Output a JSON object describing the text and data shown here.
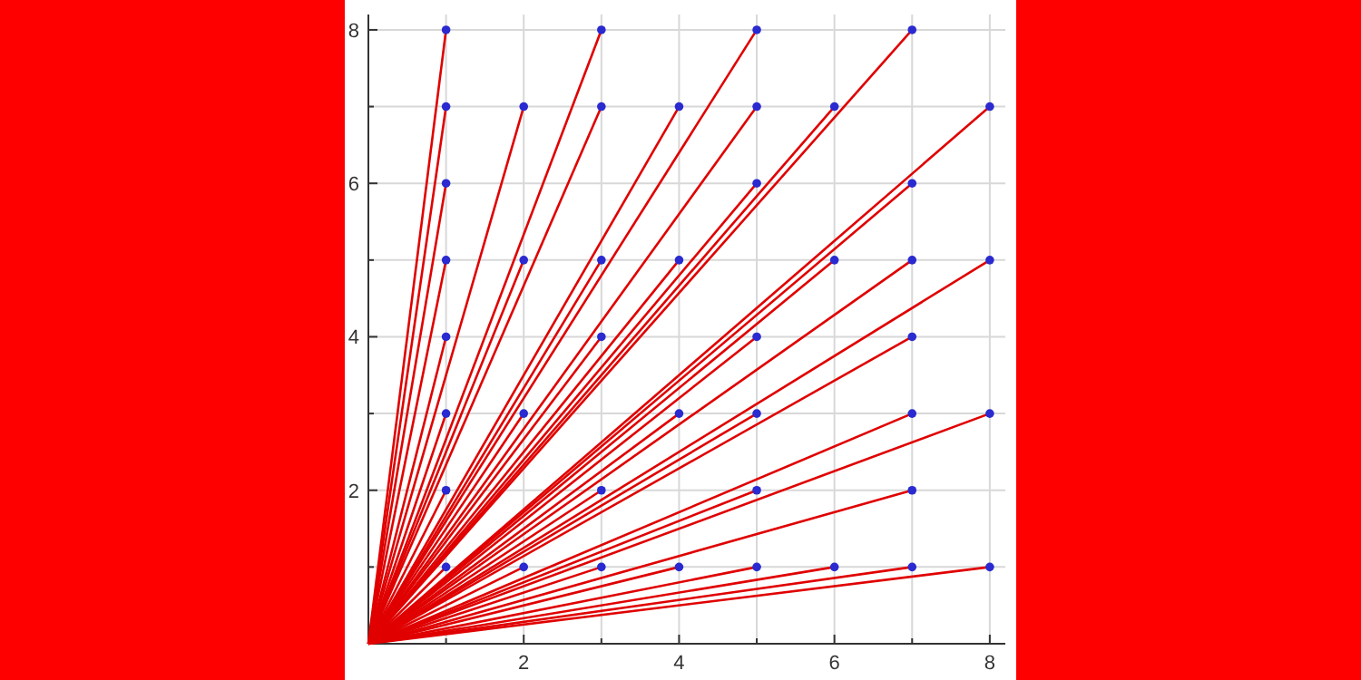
{
  "chart_data": {
    "type": "line",
    "xlim": [
      0,
      8.2
    ],
    "ylim": [
      0,
      8.2
    ],
    "xticks": [
      {
        "value": 1,
        "label": null
      },
      2,
      {
        "value": 3,
        "label": null
      },
      4,
      {
        "value": 5,
        "label": null
      },
      6,
      {
        "value": 7,
        "label": null
      },
      8
    ],
    "yticks": [
      {
        "value": 1,
        "label": null
      },
      2,
      {
        "value": 3,
        "label": null
      },
      4,
      {
        "value": 5,
        "label": null
      },
      6,
      {
        "value": 7,
        "label": null
      },
      8
    ],
    "grid": true,
    "series": [
      {
        "color": "#e00000",
        "x": [
          0,
          1
        ],
        "values": [
          0,
          1
        ]
      },
      {
        "color": "#e00000",
        "x": [
          0,
          1
        ],
        "values": [
          0,
          2
        ]
      },
      {
        "color": "#e00000",
        "x": [
          0,
          1
        ],
        "values": [
          0,
          3
        ]
      },
      {
        "color": "#e00000",
        "x": [
          0,
          1
        ],
        "values": [
          0,
          4
        ]
      },
      {
        "color": "#e00000",
        "x": [
          0,
          1
        ],
        "values": [
          0,
          5
        ]
      },
      {
        "color": "#e00000",
        "x": [
          0,
          1
        ],
        "values": [
          0,
          6
        ]
      },
      {
        "color": "#e00000",
        "x": [
          0,
          1
        ],
        "values": [
          0,
          7
        ]
      },
      {
        "color": "#e00000",
        "x": [
          0,
          1
        ],
        "values": [
          0,
          8
        ]
      },
      {
        "color": "#e00000",
        "x": [
          0,
          2
        ],
        "values": [
          0,
          1
        ]
      },
      {
        "color": "#e00000",
        "x": [
          0,
          2
        ],
        "values": [
          0,
          3
        ]
      },
      {
        "color": "#e00000",
        "x": [
          0,
          2
        ],
        "values": [
          0,
          5
        ]
      },
      {
        "color": "#e00000",
        "x": [
          0,
          2
        ],
        "values": [
          0,
          7
        ]
      },
      {
        "color": "#e00000",
        "x": [
          0,
          3
        ],
        "values": [
          0,
          1
        ]
      },
      {
        "color": "#e00000",
        "x": [
          0,
          3
        ],
        "values": [
          0,
          2
        ]
      },
      {
        "color": "#e00000",
        "x": [
          0,
          3
        ],
        "values": [
          0,
          4
        ]
      },
      {
        "color": "#e00000",
        "x": [
          0,
          3
        ],
        "values": [
          0,
          5
        ]
      },
      {
        "color": "#e00000",
        "x": [
          0,
          3
        ],
        "values": [
          0,
          7
        ]
      },
      {
        "color": "#e00000",
        "x": [
          0,
          3
        ],
        "values": [
          0,
          8
        ]
      },
      {
        "color": "#e00000",
        "x": [
          0,
          4
        ],
        "values": [
          0,
          1
        ]
      },
      {
        "color": "#e00000",
        "x": [
          0,
          4
        ],
        "values": [
          0,
          3
        ]
      },
      {
        "color": "#e00000",
        "x": [
          0,
          4
        ],
        "values": [
          0,
          5
        ]
      },
      {
        "color": "#e00000",
        "x": [
          0,
          4
        ],
        "values": [
          0,
          7
        ]
      },
      {
        "color": "#e00000",
        "x": [
          0,
          5
        ],
        "values": [
          0,
          1
        ]
      },
      {
        "color": "#e00000",
        "x": [
          0,
          5
        ],
        "values": [
          0,
          2
        ]
      },
      {
        "color": "#e00000",
        "x": [
          0,
          5
        ],
        "values": [
          0,
          3
        ]
      },
      {
        "color": "#e00000",
        "x": [
          0,
          5
        ],
        "values": [
          0,
          4
        ]
      },
      {
        "color": "#e00000",
        "x": [
          0,
          5
        ],
        "values": [
          0,
          6
        ]
      },
      {
        "color": "#e00000",
        "x": [
          0,
          5
        ],
        "values": [
          0,
          7
        ]
      },
      {
        "color": "#e00000",
        "x": [
          0,
          5
        ],
        "values": [
          0,
          8
        ]
      },
      {
        "color": "#e00000",
        "x": [
          0,
          6
        ],
        "values": [
          0,
          1
        ]
      },
      {
        "color": "#e00000",
        "x": [
          0,
          6
        ],
        "values": [
          0,
          5
        ]
      },
      {
        "color": "#e00000",
        "x": [
          0,
          6
        ],
        "values": [
          0,
          7
        ]
      },
      {
        "color": "#e00000",
        "x": [
          0,
          7
        ],
        "values": [
          0,
          1
        ]
      },
      {
        "color": "#e00000",
        "x": [
          0,
          7
        ],
        "values": [
          0,
          2
        ]
      },
      {
        "color": "#e00000",
        "x": [
          0,
          7
        ],
        "values": [
          0,
          3
        ]
      },
      {
        "color": "#e00000",
        "x": [
          0,
          7
        ],
        "values": [
          0,
          4
        ]
      },
      {
        "color": "#e00000",
        "x": [
          0,
          7
        ],
        "values": [
          0,
          5
        ]
      },
      {
        "color": "#e00000",
        "x": [
          0,
          7
        ],
        "values": [
          0,
          6
        ]
      },
      {
        "color": "#e00000",
        "x": [
          0,
          7
        ],
        "values": [
          0,
          8
        ]
      },
      {
        "color": "#e00000",
        "x": [
          0,
          8
        ],
        "values": [
          0,
          1
        ]
      },
      {
        "color": "#e00000",
        "x": [
          0,
          8
        ],
        "values": [
          0,
          3
        ]
      },
      {
        "color": "#e00000",
        "x": [
          0,
          8
        ],
        "values": [
          0,
          5
        ]
      },
      {
        "color": "#e00000",
        "x": [
          0,
          8
        ],
        "values": [
          0,
          7
        ]
      },
      {
        "type": "scatter",
        "color": "#2a2ad0",
        "marker": "circle",
        "x": [
          1,
          1,
          1,
          1,
          1,
          1,
          1,
          1,
          2,
          2,
          2,
          2,
          3,
          3,
          3,
          3,
          3,
          3,
          4,
          4,
          4,
          4,
          5,
          5,
          5,
          5,
          5,
          5,
          5,
          6,
          6,
          6,
          7,
          7,
          7,
          7,
          7,
          7,
          7,
          8,
          8,
          8,
          8
        ],
        "values": [
          1,
          2,
          3,
          4,
          5,
          6,
          7,
          8,
          1,
          3,
          5,
          7,
          1,
          2,
          4,
          5,
          7,
          8,
          1,
          3,
          5,
          7,
          1,
          2,
          3,
          4,
          6,
          7,
          8,
          1,
          5,
          7,
          1,
          2,
          3,
          4,
          5,
          6,
          8,
          1,
          3,
          5,
          7
        ]
      }
    ]
  }
}
